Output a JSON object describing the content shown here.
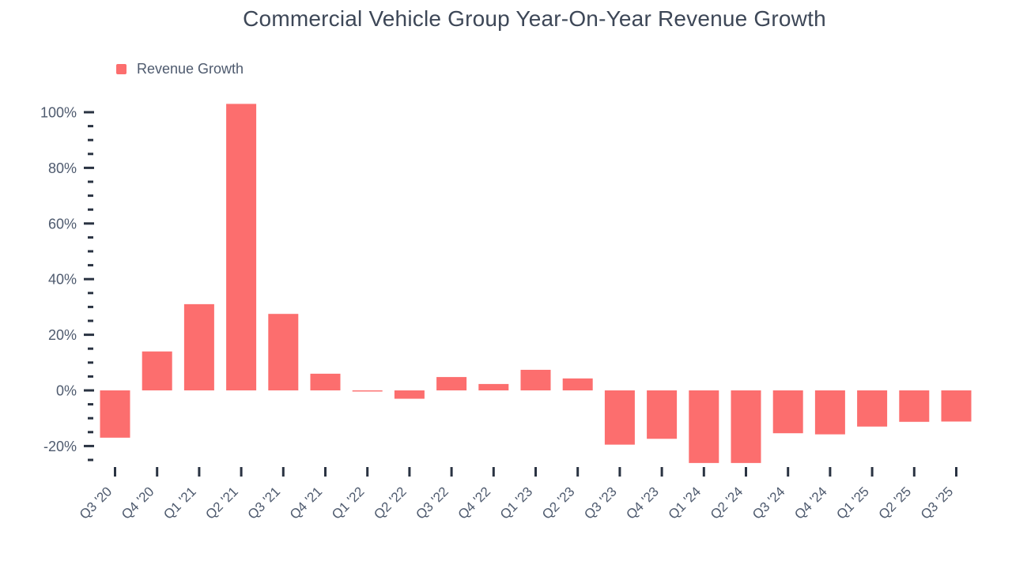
{
  "colors": {
    "background": "#ffffff",
    "bar": "#fc6e6e",
    "tick": "#2a3342",
    "axis_label": "#4e5a6e",
    "title": "#3d4757"
  },
  "chart_data": {
    "type": "bar",
    "title": "Commercial Vehicle Group Year-On-Year Revenue Growth",
    "xlabel": "",
    "ylabel": "",
    "categories": [
      "Q3 '20",
      "Q4 '20",
      "Q1 '21",
      "Q2 '21",
      "Q3 '21",
      "Q4 '21",
      "Q1 '22",
      "Q2 '22",
      "Q3 '22",
      "Q4 '22",
      "Q1 '23",
      "Q2 '23",
      "Q3 '23",
      "Q4 '23",
      "Q1 '24",
      "Q2 '24",
      "Q3 '24",
      "Q4 '24",
      "Q1 '25",
      "Q2 '25",
      "Q3 '25"
    ],
    "series": [
      {
        "name": "Revenue Growth",
        "values": [
          -17,
          14,
          31,
          103,
          27.5,
          6,
          -0.4,
          -3,
          4.8,
          2.3,
          7.4,
          4.3,
          -19.5,
          -17.4,
          -26.1,
          -26.1,
          -15.4,
          -15.8,
          -13,
          -11.3,
          -11.2
        ]
      }
    ],
    "value_unit": "%",
    "ylim": [
      -27.6,
      105
    ],
    "y_axis": {
      "major_ticks": [
        100,
        80,
        60,
        40,
        20,
        0,
        -20
      ],
      "major_labels": [
        "100%",
        "80%",
        "60%",
        "40%",
        "20%",
        "0%",
        "-20%"
      ],
      "minor_ticks": [
        95,
        90,
        85,
        75,
        70,
        65,
        55,
        50,
        45,
        35,
        30,
        25,
        15,
        10,
        5,
        -5,
        -10,
        -15,
        -25
      ]
    },
    "grid": false,
    "legend_position": "top-left"
  }
}
